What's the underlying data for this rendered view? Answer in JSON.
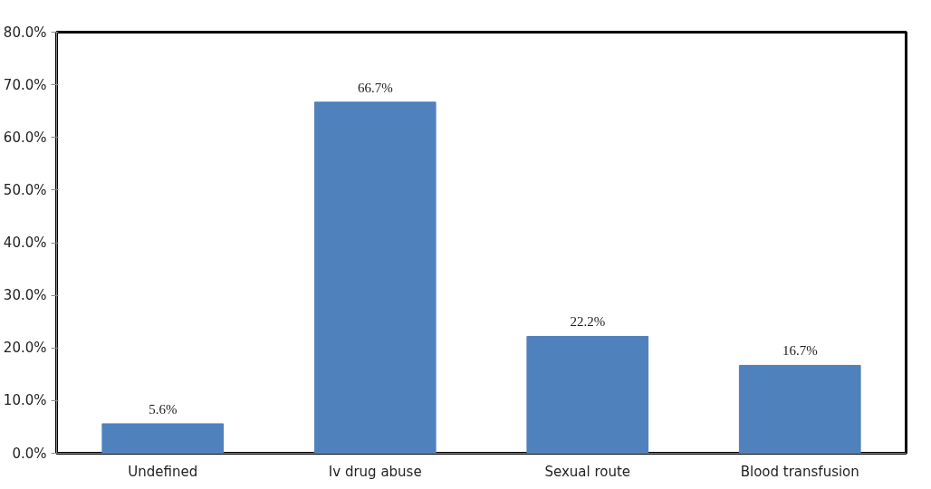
{
  "chart_data": {
    "type": "bar",
    "categories": [
      "Undefined",
      "Iv drug abuse",
      "Sexual route",
      "Blood transfusion"
    ],
    "values": [
      5.6,
      66.7,
      22.2,
      16.7
    ],
    "value_labels": [
      "5.6%",
      "66.7%",
      "22.2%",
      "16.7%"
    ],
    "color": "#4f81bd",
    "ylim": [
      0,
      80
    ],
    "yticks": [
      {
        "value": 0,
        "label": "0.0%"
      },
      {
        "value": 10,
        "label": "10.0%"
      },
      {
        "value": 20,
        "label": "20.0%"
      },
      {
        "value": 30,
        "label": "30.0%"
      },
      {
        "value": 40,
        "label": "40.0%"
      },
      {
        "value": 50,
        "label": "50.0%"
      },
      {
        "value": 60,
        "label": "60.0%"
      },
      {
        "value": 70,
        "label": "70.0%"
      },
      {
        "value": 80,
        "label": "80.0%"
      }
    ],
    "grid": false
  }
}
